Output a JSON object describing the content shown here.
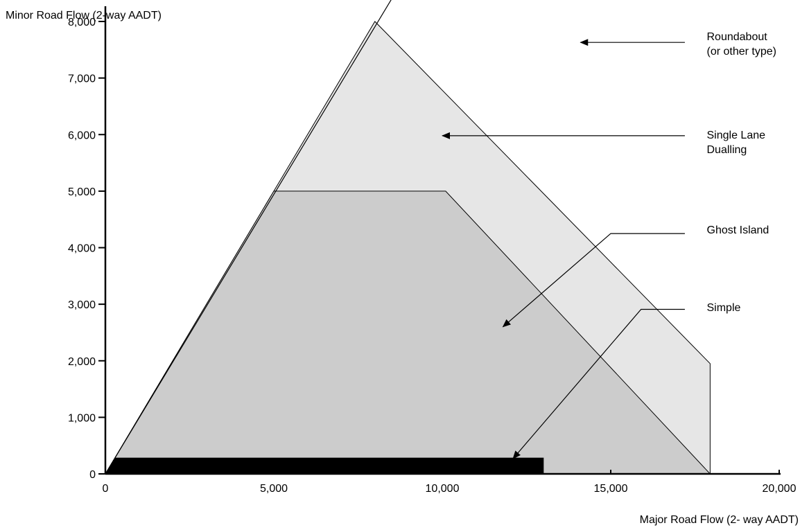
{
  "chart_data": {
    "type": "area",
    "title": "",
    "xlabel": "Major Road Flow (2- way AADT)",
    "ylabel": "Minor Road Flow (2-way AADT)",
    "xlim": [
      0,
      20000
    ],
    "ylim": [
      0,
      8000
    ],
    "x_ticks": [
      {
        "value": 0,
        "label": "0"
      },
      {
        "value": 5000,
        "label": "5,000"
      },
      {
        "value": 10000,
        "label": "10,000"
      },
      {
        "value": 15000,
        "label": "15,000"
      },
      {
        "value": 20000,
        "label": "20,000"
      }
    ],
    "y_ticks": [
      {
        "value": 0,
        "label": "0"
      },
      {
        "value": 1000,
        "label": "1,000"
      },
      {
        "value": 2000,
        "label": "2,000"
      },
      {
        "value": 3000,
        "label": "3,000"
      },
      {
        "value": 4000,
        "label": "4,000"
      },
      {
        "value": 5000,
        "label": "5,000"
      },
      {
        "value": 6000,
        "label": "6,000"
      },
      {
        "value": 7000,
        "label": "7,000"
      },
      {
        "value": 8000,
        "label": "8,000"
      }
    ],
    "grid": false,
    "boundary_line": {
      "from": [
        0,
        0
      ],
      "to": [
        8600,
        8500
      ]
    },
    "regions": [
      {
        "id": "single-lane-dualling",
        "fill": "#e6e6e6",
        "points": [
          [
            0,
            0
          ],
          [
            8000,
            8000
          ],
          [
            17950,
            1950
          ],
          [
            17950,
            0
          ]
        ]
      },
      {
        "id": "ghost-island",
        "fill": "#cccccc",
        "points": [
          [
            0,
            0
          ],
          [
            5000,
            5000
          ],
          [
            10100,
            5000
          ],
          [
            17950,
            0
          ]
        ]
      },
      {
        "id": "simple",
        "fill": "#000000",
        "points": [
          [
            0,
            0
          ],
          [
            300,
            280
          ],
          [
            13000,
            280
          ],
          [
            13000,
            0
          ]
        ]
      }
    ],
    "annotations": [
      {
        "id": "roundabout",
        "lines": [
          "Roundabout",
          "(or other type)"
        ],
        "text_at": [
          17850,
          7670
        ],
        "arrow_from": [
          17200,
          7630
        ],
        "arrow_to": [
          14100,
          7630
        ]
      },
      {
        "id": "single-lane-dualling",
        "lines": [
          "Single Lane",
          "Dualling"
        ],
        "text_at": [
          17850,
          5930
        ],
        "arrow_from": [
          17200,
          5980
        ],
        "arrow_to": [
          10000,
          5980
        ]
      },
      {
        "id": "ghost-island",
        "lines": [
          "Ghost Island"
        ],
        "text_at": [
          17850,
          4250
        ],
        "arrow_from": [
          17200,
          4250
        ],
        "arrow_via": [
          15000,
          4250
        ],
        "arrow_to": [
          11800,
          2600
        ]
      },
      {
        "id": "simple",
        "lines": [
          "Simple"
        ],
        "text_at": [
          17850,
          2880
        ],
        "arrow_from": [
          17200,
          2910
        ],
        "arrow_via": [
          15900,
          2910
        ],
        "arrow_to": [
          12100,
          270
        ]
      }
    ]
  }
}
